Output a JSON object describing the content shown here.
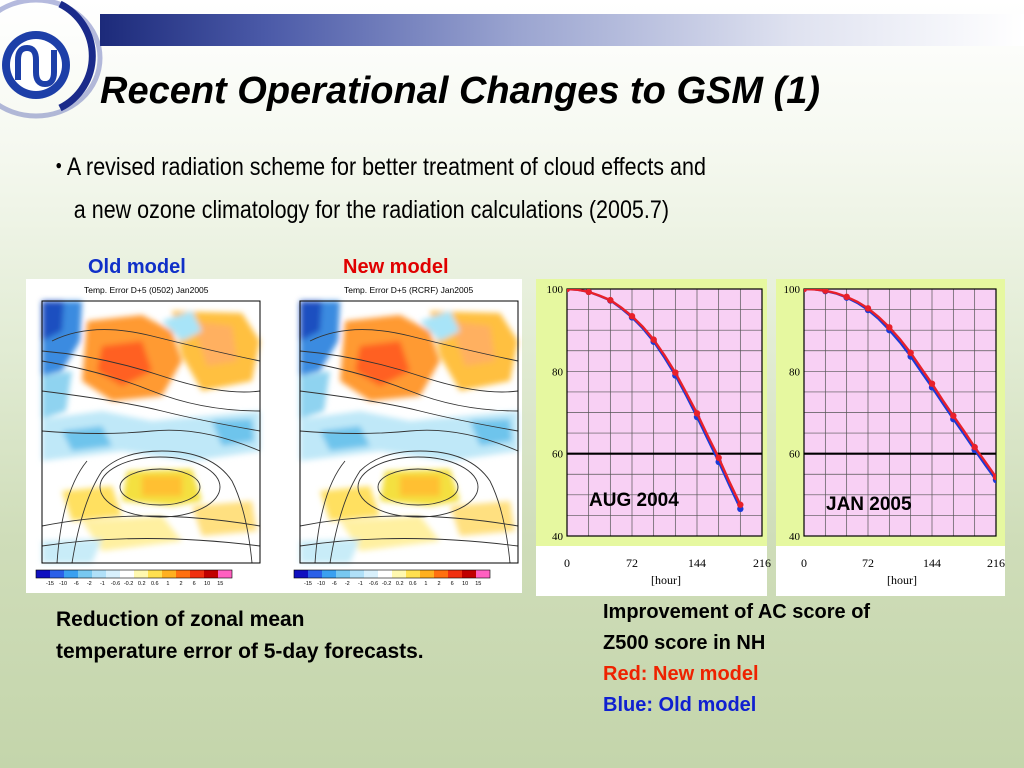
{
  "slide": {
    "title": "Recent Operational Changes to GSM (1)",
    "bullet_line1": "A revised radiation scheme for better treatment of cloud effects and",
    "bullet_line2": "a new ozone climatology for the radiation calculations (2005.7)",
    "bullet_glyph": "・"
  },
  "maps": {
    "old_label": "Old model",
    "new_label": "New model",
    "old_title": "Temp. Error D+5 (0502) Jan2005",
    "new_title": "Temp. Error D+5 (RCRF) Jan2005",
    "colorbar_ticks": [
      "-15",
      "-10",
      "-6",
      "-2",
      "-1",
      "-0.6",
      "-0.2",
      "0.2",
      "0.6",
      "1",
      "2",
      "6",
      "10",
      "15"
    ],
    "caption_line1": "Reduction of zonal mean",
    "caption_line2": "temperature error of 5-day forecasts."
  },
  "ac_score": {
    "panel1_tag": "AUG 2004",
    "panel2_tag": "JAN 2005",
    "x_ticks": [
      "0",
      "72",
      "144",
      "216"
    ],
    "y_ticks": [
      "100",
      "80",
      "60",
      "40"
    ],
    "x_unit": "[hour]",
    "caption_line1": "Improvement of AC score of",
    "caption_line2": "Z500 score in NH",
    "caption_red": "Red: New model",
    "caption_blue": "Blue: Old model"
  },
  "colors": {
    "new_model": "#e8202a",
    "old_model": "#1a3ad8",
    "plot_bg": "#f8d0f4",
    "panel_bg": "#e6f8a0"
  },
  "chart_data": [
    {
      "type": "line",
      "title": "AUG 2004",
      "xlabel": "[hour]",
      "ylabel": "",
      "xlim": [
        0,
        216
      ],
      "ylim": [
        40,
        100
      ],
      "series": [
        {
          "name": "Red: New model",
          "x": [
            0,
            12,
            24,
            36,
            48,
            60,
            72,
            84,
            96,
            108,
            120,
            132,
            144,
            156,
            168,
            180,
            192
          ],
          "values": [
            100,
            99.8,
            99.3,
            98.4,
            97.3,
            95.5,
            93.4,
            90.8,
            87.7,
            83.9,
            79.7,
            74.8,
            69.8,
            64.3,
            59.0,
            53.1,
            47.6
          ]
        },
        {
          "name": "Blue: Old model",
          "x": [
            0,
            12,
            24,
            36,
            48,
            60,
            72,
            84,
            96,
            108,
            120,
            132,
            144,
            156,
            168,
            180,
            192
          ],
          "values": [
            100,
            99.8,
            99.3,
            98.3,
            97.2,
            95.3,
            93.1,
            90.4,
            87.2,
            83.3,
            79.0,
            74.1,
            68.9,
            63.4,
            58.0,
            52.2,
            46.6
          ]
        }
      ],
      "reference_line": 60
    },
    {
      "type": "line",
      "title": "JAN 2005",
      "xlabel": "[hour]",
      "ylabel": "",
      "xlim": [
        0,
        216
      ],
      "ylim": [
        40,
        100
      ],
      "series": [
        {
          "name": "Red: New model",
          "x": [
            0,
            12,
            24,
            36,
            48,
            60,
            72,
            84,
            96,
            108,
            120,
            132,
            144,
            156,
            168,
            180,
            192,
            204,
            216
          ],
          "values": [
            100,
            99.9,
            99.6,
            99.0,
            98.1,
            96.9,
            95.3,
            93.2,
            90.7,
            87.8,
            84.5,
            80.7,
            77.0,
            73.0,
            69.2,
            65.5,
            61.6,
            58.0,
            54.3
          ]
        },
        {
          "name": "Blue: Old model",
          "x": [
            0,
            12,
            24,
            36,
            48,
            60,
            72,
            84,
            96,
            108,
            120,
            132,
            144,
            156,
            168,
            180,
            192,
            204,
            216
          ],
          "values": [
            100,
            99.9,
            99.5,
            98.9,
            97.9,
            96.6,
            94.9,
            92.7,
            90.0,
            87.0,
            83.6,
            79.8,
            76.1,
            72.2,
            68.4,
            64.7,
            60.9,
            57.2,
            53.6
          ]
        }
      ],
      "reference_line": 60
    }
  ]
}
